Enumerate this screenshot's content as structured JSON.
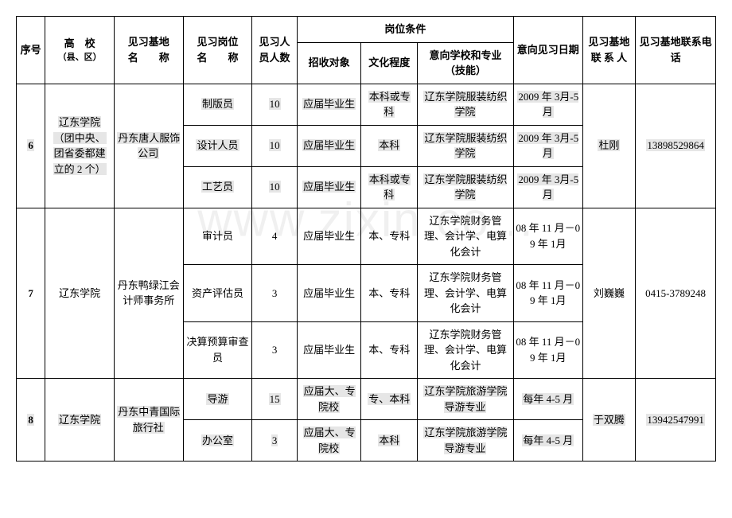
{
  "watermark": "www.zixin.co...",
  "header": {
    "seq": "序号",
    "school": "高　校",
    "school_sub": "（县、区）",
    "base": "见习基地",
    "base2": "名　　称",
    "position": "见习岗位",
    "position2": "名　　称",
    "count": "见习人员人数",
    "conditions": "岗位条件",
    "target": "招收对象",
    "edu": "文化程度",
    "pref": "意向学校和专业（技能）",
    "date": "意向见习日期",
    "contact": "见习基地联 系 人",
    "phone": "见习基地联系电话"
  },
  "rows": [
    {
      "seq": "6",
      "school_lines": [
        "辽东学院",
        "（团中央、",
        "团省委都建",
        "立的 2 个）"
      ],
      "base": "丹东唐人服饰公司",
      "contact": "杜刚",
      "phone": "13898529864",
      "seq_hl": true,
      "school_hl": true,
      "base_hl": true,
      "contact_hl": true,
      "phone_hl": true,
      "sub": [
        {
          "pos": "制版员",
          "cnt": "10",
          "tgt": "应届毕业生",
          "edu": "本科或专科",
          "pref": "辽东学院服装纺织学院",
          "date": "2009 年 3月-5 月",
          "hl": true
        },
        {
          "pos": "设计人员",
          "cnt": "10",
          "tgt": "应届毕业生",
          "edu": "本科",
          "pref": "辽东学院服装纺织学院",
          "date": "2009 年 3月-5 月",
          "hl": true
        },
        {
          "pos": "工艺员",
          "cnt": "10",
          "tgt": "应届毕业生",
          "edu": "本科或专科",
          "pref": "辽东学院服装纺织学院",
          "date": "2009 年 3月-5 月",
          "hl": true
        }
      ]
    },
    {
      "seq": "7",
      "school_lines": [
        "辽东学院"
      ],
      "base": "丹东鸭绿江会计师事务所",
      "contact": "刘巍巍",
      "phone": "0415-3789248",
      "seq_hl": false,
      "school_hl": false,
      "base_hl": false,
      "contact_hl": false,
      "phone_hl": false,
      "sub": [
        {
          "pos": "审计员",
          "cnt": "4",
          "tgt": "应届毕业生",
          "edu": "本、专科",
          "pref": "辽东学院财务管理、会计学、电算化会计",
          "date": "08 年 11 月－09 年 1月",
          "hl": false
        },
        {
          "pos": "资产评估员",
          "cnt": "3",
          "tgt": "应届毕业生",
          "edu": "本、专科",
          "pref": "辽东学院财务管理、会计学、电算化会计",
          "date": "08 年 11 月－09 年 1月",
          "hl": false
        },
        {
          "pos": "决算预算审查员",
          "cnt": "3",
          "tgt": "应届毕业生",
          "edu": "本、专科",
          "pref": "辽东学院财务管理、会计学、电算化会计",
          "date": "08 年 11 月－09 年 1月",
          "hl": false
        }
      ]
    },
    {
      "seq": "8",
      "school_lines": [
        "辽东学院"
      ],
      "base": "丹东中青国际旅行社",
      "contact": "于双腾",
      "phone": "13942547991",
      "seq_hl": true,
      "school_hl": true,
      "base_hl": true,
      "contact_hl": true,
      "phone_hl": true,
      "sub": [
        {
          "pos": "导游",
          "cnt": "15",
          "tgt": "应届大、专院校",
          "edu": "专、本科",
          "pref": "辽东学院旅游学院导游专业",
          "date": "每年 4-5 月",
          "hl": true
        },
        {
          "pos": "办公室",
          "cnt": "3",
          "tgt": "应届大、专院校",
          "edu": "本科",
          "pref": "辽东学院旅游学院导游专业",
          "date": "每年 4-5 月",
          "hl": true
        }
      ]
    }
  ]
}
